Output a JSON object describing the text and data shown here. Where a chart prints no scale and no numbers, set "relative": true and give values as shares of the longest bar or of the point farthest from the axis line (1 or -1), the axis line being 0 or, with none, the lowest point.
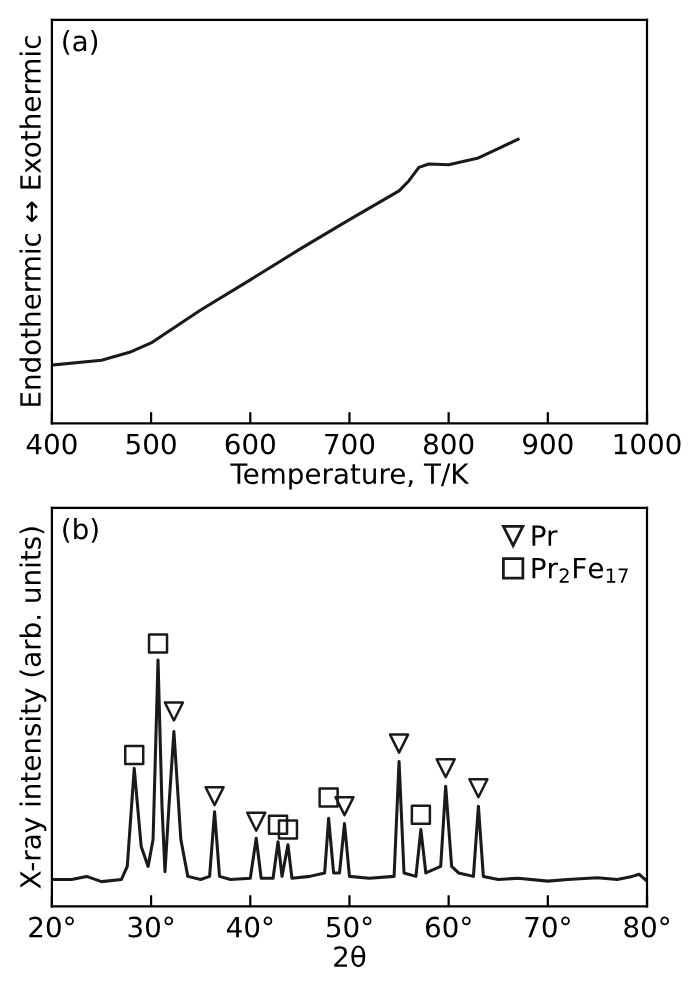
{
  "chart_data": [
    {
      "type": "line",
      "relative": true,
      "annotations": [
        "(a)"
      ],
      "xlabel": "Temperature, T/K",
      "ylabel": "Endothermic ↔ Exothermic",
      "xlim": [
        400,
        1000
      ],
      "xticks": [
        400,
        500,
        600,
        700,
        800,
        900,
        1000
      ],
      "tick_labels": "x",
      "grid": false,
      "legend": false,
      "series": [
        {
          "color": "#1a1a1a",
          "x": [
            400,
            450,
            480,
            500,
            550,
            600,
            650,
            700,
            750,
            760,
            770,
            780,
            800,
            830,
            850,
            870
          ],
          "values": [
            0.205,
            0.222,
            0.252,
            0.283,
            0.399,
            0.505,
            0.613,
            0.717,
            0.818,
            0.854,
            0.901,
            0.913,
            0.91,
            0.934,
            0.967,
            1.0
          ]
        }
      ]
    },
    {
      "type": "line",
      "relative": true,
      "annotations": [
        "(b)"
      ],
      "xlabel": "2θ",
      "ylabel": "X-ray intensity (arb. units)",
      "xlim": [
        20,
        80
      ],
      "xticks": [
        {
          "value": 20,
          "label": "20°"
        },
        {
          "value": 30,
          "label": "30°"
        },
        {
          "value": 40,
          "label": "40°"
        },
        {
          "value": 50,
          "label": "50°"
        },
        {
          "value": 60,
          "label": "60°"
        },
        {
          "value": 70,
          "label": "70°"
        },
        {
          "value": 80,
          "label": "80°"
        }
      ],
      "tick_labels": "x",
      "grid": false,
      "legend": "top right",
      "series": [
        {
          "type": "line",
          "color": "#1a1a1a",
          "x": [
            20,
            22,
            23.5,
            25,
            27,
            27.6,
            28.3,
            29,
            29.7,
            30.2,
            30.7,
            31.1,
            31.4,
            31.8,
            32.3,
            33,
            33.7,
            35,
            35.9,
            36.4,
            36.9,
            38,
            40,
            40.6,
            41.1,
            42.3,
            42.8,
            43.2,
            43.8,
            44.2,
            46,
            47.5,
            47.9,
            48.4,
            49,
            49.5,
            50,
            52,
            54.5,
            55,
            55.5,
            56.7,
            57.2,
            57.7,
            59.2,
            59.7,
            60.3,
            61,
            62.5,
            63,
            63.5,
            65,
            67,
            70,
            72,
            75,
            77,
            78.5,
            79.2,
            80
          ],
          "values": [
            0.102,
            0.102,
            0.114,
            0.094,
            0.102,
            0.152,
            0.525,
            0.228,
            0.152,
            0.254,
            0.937,
            0.381,
            0.132,
            0.381,
            0.665,
            0.254,
            0.114,
            0.102,
            0.114,
            0.36,
            0.114,
            0.102,
            0.107,
            0.259,
            0.107,
            0.107,
            0.246,
            0.114,
            0.234,
            0.107,
            0.114,
            0.127,
            0.335,
            0.127,
            0.127,
            0.315,
            0.114,
            0.107,
            0.114,
            0.551,
            0.127,
            0.114,
            0.292,
            0.127,
            0.152,
            0.457,
            0.152,
            0.127,
            0.114,
            0.381,
            0.114,
            0.102,
            0.107,
            0.096,
            0.102,
            0.109,
            0.102,
            0.114,
            0.122,
            0.096
          ]
        },
        {
          "type": "scatter",
          "name": "Pr",
          "marker": "triangle",
          "color": "#1a1a1a",
          "x": [
            32.3,
            36.4,
            40.6,
            49.5,
            55.0,
            59.7,
            63.0
          ],
          "values": [
            0.741,
            0.419,
            0.322,
            0.381,
            0.619,
            0.525,
            0.449
          ]
        },
        {
          "type": "scatter",
          "name": "Pr$_{2}$Fe$_{17}$",
          "marker": "square",
          "color": "#1a1a1a",
          "x": [
            28.3,
            30.7,
            42.8,
            43.8,
            47.9,
            57.2
          ],
          "values": [
            0.576,
            1.0,
            0.31,
            0.292,
            0.414,
            0.348
          ]
        }
      ]
    }
  ]
}
